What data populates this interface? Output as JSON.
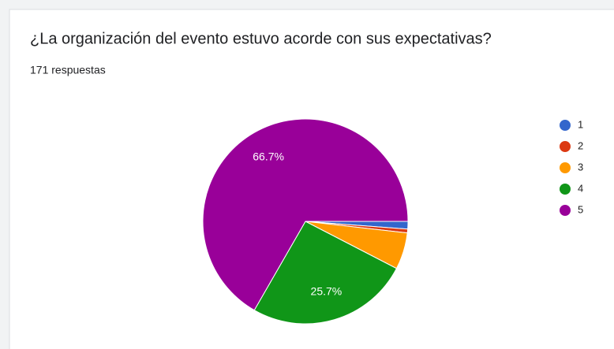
{
  "chart_data": {
    "type": "pie",
    "title": "¿La organización del evento estuvo acorde con sus expectativas?",
    "subtitle": "171 respuestas",
    "categories": [
      "1",
      "2",
      "3",
      "4",
      "5"
    ],
    "values": [
      1.2,
      0.6,
      5.8,
      25.7,
      66.7
    ],
    "value_labels": [
      null,
      null,
      null,
      "25.7%",
      "66.7%"
    ],
    "colors": [
      "#3366cc",
      "#dc3912",
      "#ff9900",
      "#109618",
      "#990099"
    ],
    "legend": "right"
  }
}
